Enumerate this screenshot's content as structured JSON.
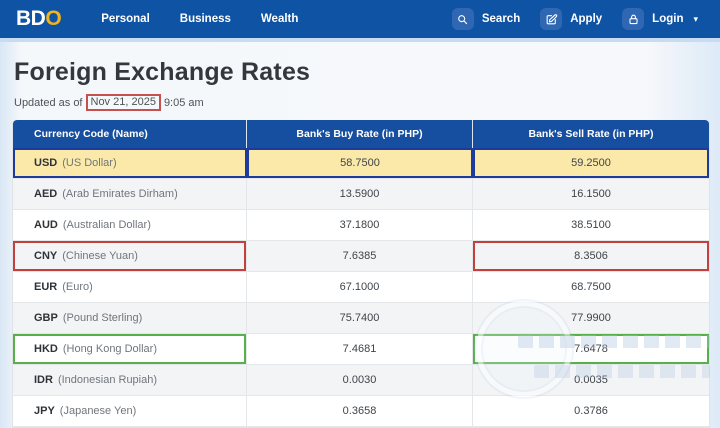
{
  "brand": {
    "logo_part1": "BD",
    "logo_part2": "O"
  },
  "nav": {
    "items": [
      {
        "label": "Personal"
      },
      {
        "label": "Business"
      },
      {
        "label": "Wealth"
      }
    ],
    "actions": [
      {
        "label": "Search",
        "icon": "search-icon"
      },
      {
        "label": "Apply",
        "icon": "edit-icon"
      },
      {
        "label": "Login",
        "icon": "lock-icon",
        "caret": "▾"
      }
    ]
  },
  "page": {
    "title": "Foreign Exchange Rates",
    "updated_prefix": "Updated as of",
    "updated_date": "Nov 21, 2025",
    "updated_time": "9:05 am"
  },
  "table": {
    "columns": [
      "Currency Code (Name)",
      "Bank's Buy Rate (in PHP)",
      "Bank's Sell Rate (in PHP)"
    ],
    "rows": [
      {
        "code": "USD",
        "name": "(US Dollar)",
        "buy": "58.7500",
        "sell": "59.2500",
        "annotation": "blue-row"
      },
      {
        "code": "AED",
        "name": "(Arab Emirates Dirham)",
        "buy": "13.5900",
        "sell": "16.1500",
        "annotation": null
      },
      {
        "code": "AUD",
        "name": "(Australian Dollar)",
        "buy": "37.1800",
        "sell": "38.5100",
        "annotation": null
      },
      {
        "code": "CNY",
        "name": "(Chinese Yuan)",
        "buy": "7.6385",
        "sell": "8.3506",
        "annotation": "red-boxes"
      },
      {
        "code": "EUR",
        "name": "(Euro)",
        "buy": "67.1000",
        "sell": "68.7500",
        "annotation": null
      },
      {
        "code": "GBP",
        "name": "(Pound Sterling)",
        "buy": "75.7400",
        "sell": "77.9900",
        "annotation": null
      },
      {
        "code": "HKD",
        "name": "(Hong Kong Dollar)",
        "buy": "7.4681",
        "sell": "7.6478",
        "annotation": "green-boxes"
      },
      {
        "code": "IDR",
        "name": "(Indonesian Rupiah)",
        "buy": "0.0030",
        "sell": "0.0035",
        "annotation": null
      },
      {
        "code": "JPY",
        "name": "(Japanese Yen)",
        "buy": "0.3658",
        "sell": "0.3786",
        "annotation": null
      }
    ]
  },
  "colors": {
    "brand_blue": "#0f53a5",
    "header_blue": "#164f9f",
    "logo_gold": "#f0b41c",
    "usd_highlight_yellow": "#fae9a8",
    "annotation_blue": "#1c3b9d",
    "annotation_red": "#c4403c",
    "annotation_green": "#57b14b",
    "date_box_red": "#c5504d"
  }
}
